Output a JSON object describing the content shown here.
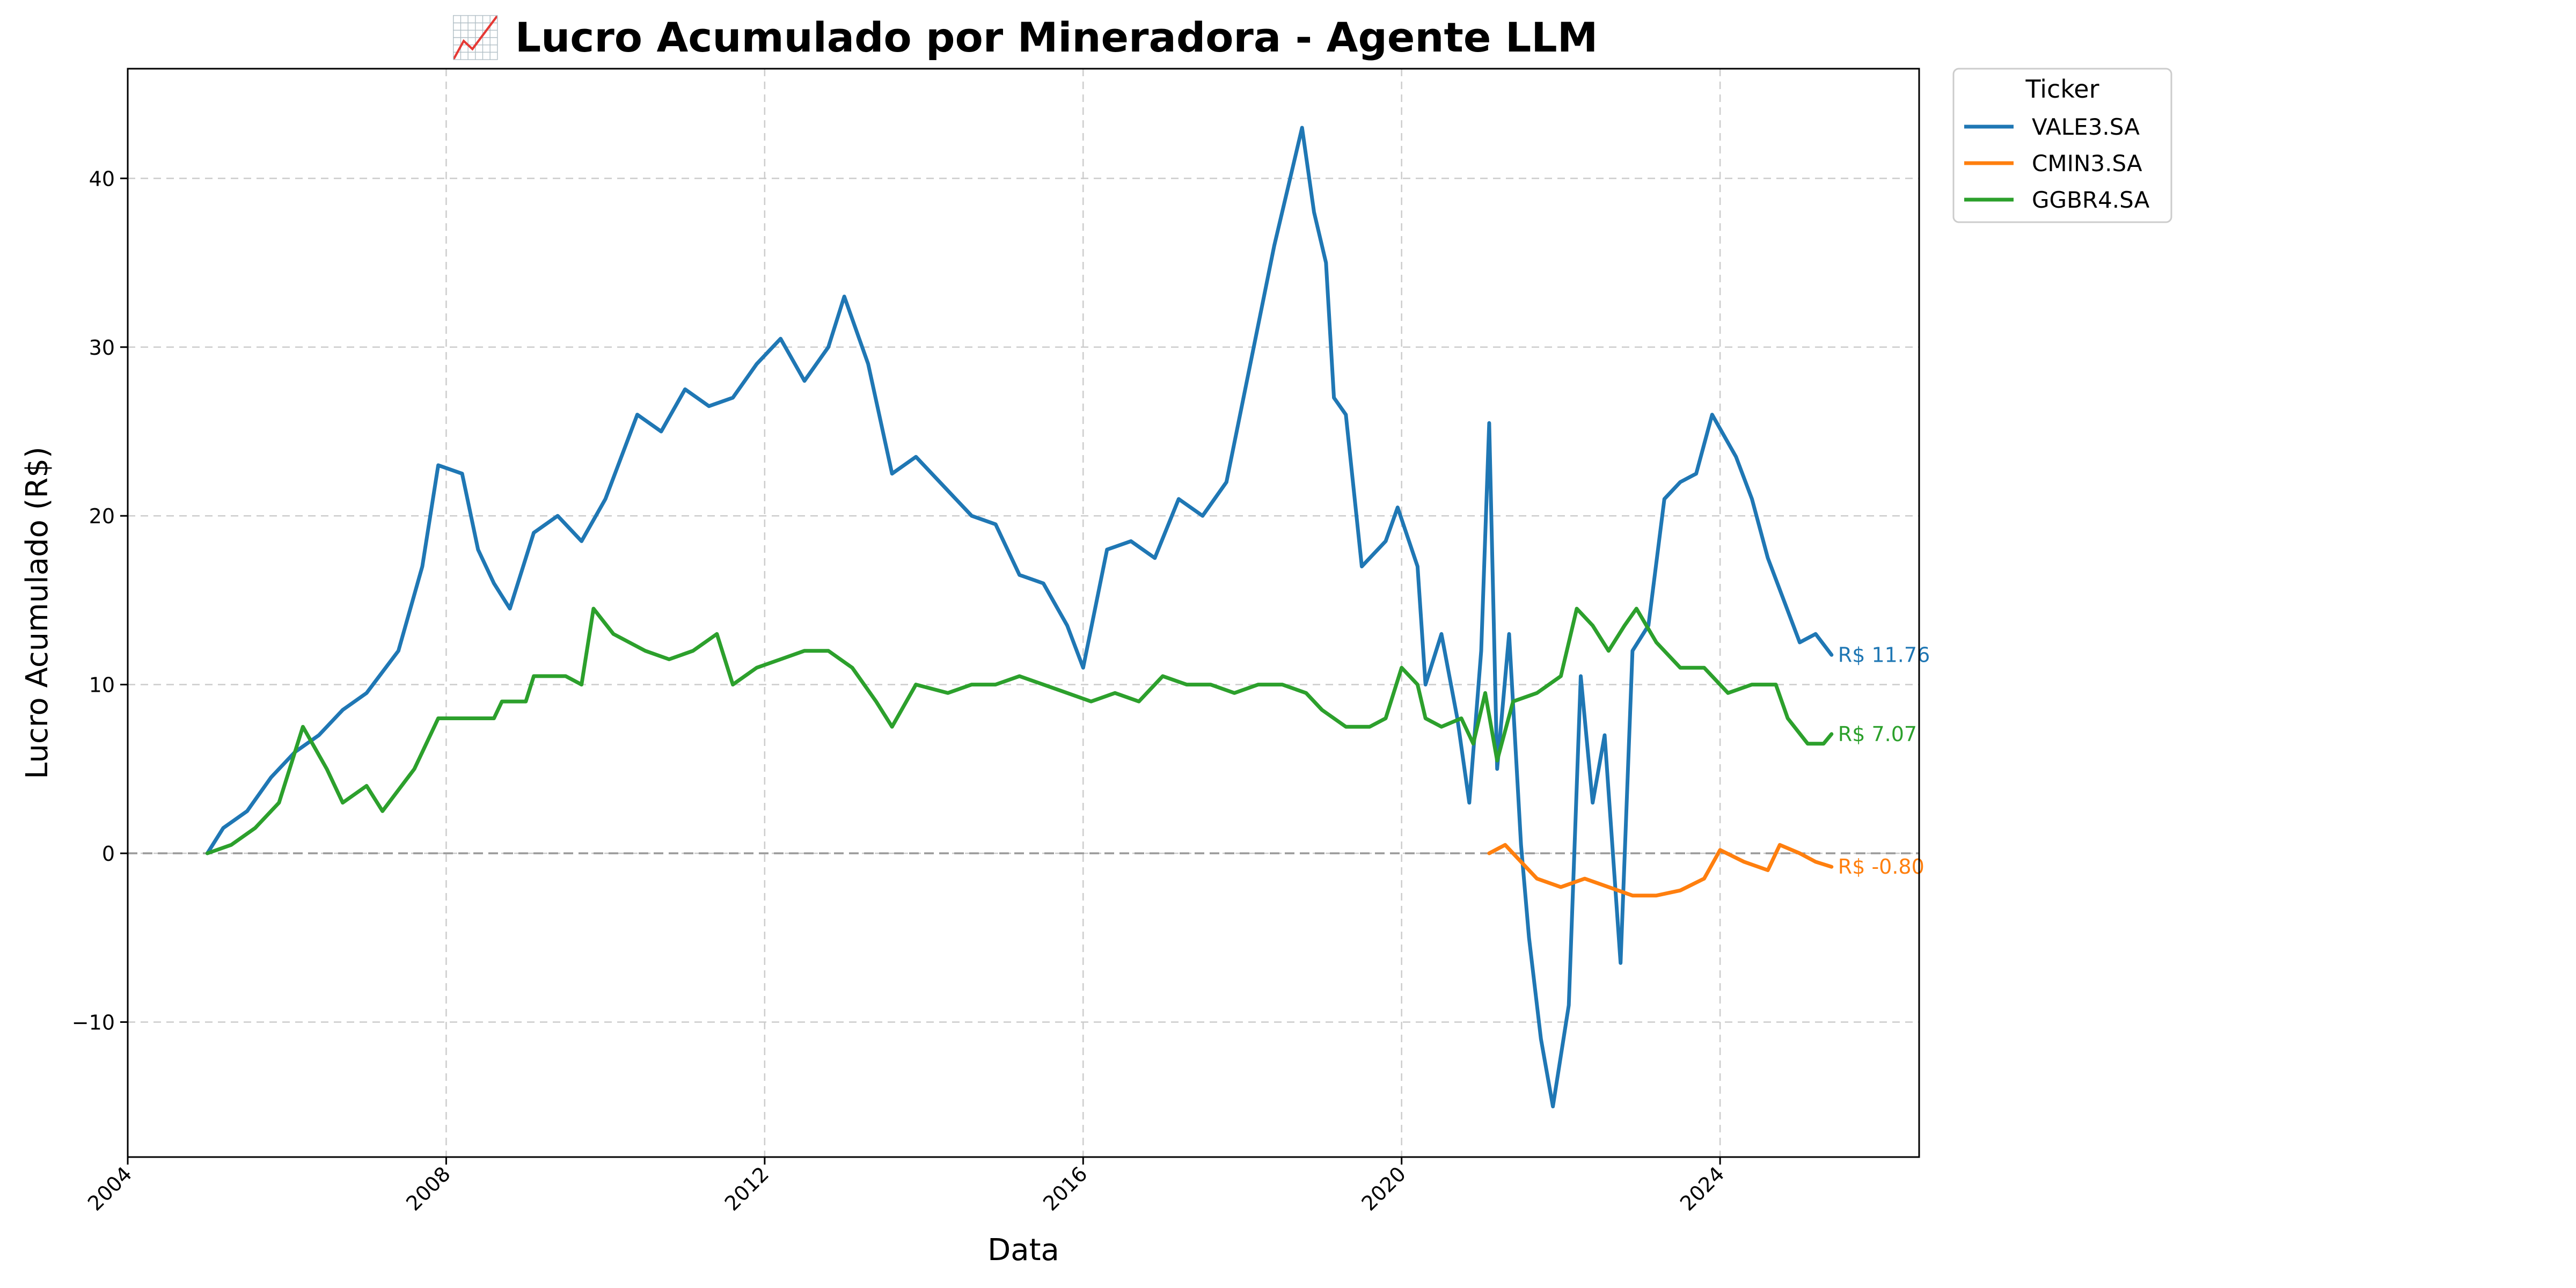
{
  "chart_data": {
    "type": "line",
    "title": "📈 Lucro Acumulado por Mineradora - Agente LLM",
    "xlabel": "Data",
    "ylabel": "Lucro Acumulado (R$)",
    "xlim": [
      2004.0,
      2026.5
    ],
    "ylim": [
      -18.0,
      46.5
    ],
    "x_ticks": [
      2004,
      2008,
      2012,
      2016,
      2020,
      2024
    ],
    "x_tick_labels": [
      "2004",
      "2008",
      "2012",
      "2016",
      "2020",
      "2024"
    ],
    "y_ticks": [
      -10,
      0,
      10,
      20,
      30,
      40
    ],
    "y_tick_labels": [
      "−10",
      "0",
      "10",
      "20",
      "30",
      "40"
    ],
    "grid": true,
    "zero_line": 0,
    "legend": {
      "title": "Ticker",
      "placement": "outside upper right"
    },
    "series": [
      {
        "name": "VALE3.SA",
        "color": "#1f77b4",
        "end_label": "R$ 11.76",
        "points": [
          [
            2005.0,
            0.0
          ],
          [
            2005.2,
            1.5
          ],
          [
            2005.5,
            2.5
          ],
          [
            2005.8,
            4.5
          ],
          [
            2006.1,
            6.0
          ],
          [
            2006.4,
            7.0
          ],
          [
            2006.7,
            8.5
          ],
          [
            2007.0,
            9.5
          ],
          [
            2007.4,
            12.0
          ],
          [
            2007.7,
            17.0
          ],
          [
            2007.9,
            23.0
          ],
          [
            2008.2,
            22.5
          ],
          [
            2008.4,
            18.0
          ],
          [
            2008.6,
            16.0
          ],
          [
            2008.8,
            14.5
          ],
          [
            2009.1,
            19.0
          ],
          [
            2009.4,
            20.0
          ],
          [
            2009.7,
            18.5
          ],
          [
            2010.0,
            21.0
          ],
          [
            2010.4,
            26.0
          ],
          [
            2010.7,
            25.0
          ],
          [
            2011.0,
            27.5
          ],
          [
            2011.3,
            26.5
          ],
          [
            2011.6,
            27.0
          ],
          [
            2011.9,
            29.0
          ],
          [
            2012.2,
            30.5
          ],
          [
            2012.5,
            28.0
          ],
          [
            2012.8,
            30.0
          ],
          [
            2013.0,
            33.0
          ],
          [
            2013.3,
            29.0
          ],
          [
            2013.6,
            22.5
          ],
          [
            2013.9,
            23.5
          ],
          [
            2014.2,
            22.0
          ],
          [
            2014.6,
            20.0
          ],
          [
            2014.9,
            19.5
          ],
          [
            2015.2,
            16.5
          ],
          [
            2015.5,
            16.0
          ],
          [
            2015.8,
            13.5
          ],
          [
            2016.0,
            11.0
          ],
          [
            2016.3,
            18.0
          ],
          [
            2016.6,
            18.5
          ],
          [
            2016.9,
            17.5
          ],
          [
            2017.2,
            21.0
          ],
          [
            2017.5,
            20.0
          ],
          [
            2017.8,
            22.0
          ],
          [
            2018.1,
            29.0
          ],
          [
            2018.4,
            36.0
          ],
          [
            2018.6,
            40.0
          ],
          [
            2018.75,
            43.0
          ],
          [
            2018.9,
            38.0
          ],
          [
            2019.05,
            35.0
          ],
          [
            2019.15,
            27.0
          ],
          [
            2019.3,
            26.0
          ],
          [
            2019.5,
            17.0
          ],
          [
            2019.8,
            18.5
          ],
          [
            2019.95,
            20.5
          ],
          [
            2020.2,
            17.0
          ],
          [
            2020.3,
            10.0
          ],
          [
            2020.5,
            13.0
          ],
          [
            2020.7,
            8.0
          ],
          [
            2020.85,
            3.0
          ],
          [
            2021.0,
            12.0
          ],
          [
            2021.1,
            25.5
          ],
          [
            2021.2,
            5.0
          ],
          [
            2021.35,
            13.0
          ],
          [
            2021.5,
            0.5
          ],
          [
            2021.6,
            -5.0
          ],
          [
            2021.75,
            -11.0
          ],
          [
            2021.9,
            -15.0
          ],
          [
            2022.1,
            -9.0
          ],
          [
            2022.25,
            10.5
          ],
          [
            2022.4,
            3.0
          ],
          [
            2022.55,
            7.0
          ],
          [
            2022.75,
            -6.5
          ],
          [
            2022.9,
            12.0
          ],
          [
            2023.1,
            13.5
          ],
          [
            2023.3,
            21.0
          ],
          [
            2023.5,
            22.0
          ],
          [
            2023.7,
            22.5
          ],
          [
            2023.9,
            26.0
          ],
          [
            2024.2,
            23.5
          ],
          [
            2024.4,
            21.0
          ],
          [
            2024.6,
            17.5
          ],
          [
            2024.8,
            15.0
          ],
          [
            2025.0,
            12.5
          ],
          [
            2025.2,
            13.0
          ],
          [
            2025.4,
            11.76
          ]
        ]
      },
      {
        "name": "CMIN3.SA",
        "color": "#ff7f0e",
        "end_label": "R$ -0.80",
        "points": [
          [
            2021.1,
            0.0
          ],
          [
            2021.3,
            0.5
          ],
          [
            2021.5,
            -0.5
          ],
          [
            2021.7,
            -1.5
          ],
          [
            2022.0,
            -2.0
          ],
          [
            2022.3,
            -1.5
          ],
          [
            2022.6,
            -2.0
          ],
          [
            2022.9,
            -2.5
          ],
          [
            2023.2,
            -2.5
          ],
          [
            2023.5,
            -2.2
          ],
          [
            2023.8,
            -1.5
          ],
          [
            2024.0,
            0.2
          ],
          [
            2024.3,
            -0.5
          ],
          [
            2024.6,
            -1.0
          ],
          [
            2024.75,
            0.5
          ],
          [
            2025.0,
            0.0
          ],
          [
            2025.2,
            -0.5
          ],
          [
            2025.4,
            -0.8
          ]
        ]
      },
      {
        "name": "GGBR4.SA",
        "color": "#2ca02c",
        "end_label": "R$ 7.07",
        "points": [
          [
            2005.0,
            0.0
          ],
          [
            2005.3,
            0.5
          ],
          [
            2005.6,
            1.5
          ],
          [
            2005.9,
            3.0
          ],
          [
            2006.2,
            7.5
          ],
          [
            2006.5,
            5.0
          ],
          [
            2006.7,
            3.0
          ],
          [
            2007.0,
            4.0
          ],
          [
            2007.2,
            2.5
          ],
          [
            2007.6,
            5.0
          ],
          [
            2007.9,
            8.0
          ],
          [
            2008.2,
            8.0
          ],
          [
            2008.6,
            8.0
          ],
          [
            2008.7,
            9.0
          ],
          [
            2009.0,
            9.0
          ],
          [
            2009.1,
            10.5
          ],
          [
            2009.5,
            10.5
          ],
          [
            2009.7,
            10.0
          ],
          [
            2009.85,
            14.5
          ],
          [
            2010.1,
            13.0
          ],
          [
            2010.5,
            12.0
          ],
          [
            2010.8,
            11.5
          ],
          [
            2011.1,
            12.0
          ],
          [
            2011.4,
            13.0
          ],
          [
            2011.6,
            10.0
          ],
          [
            2011.9,
            11.0
          ],
          [
            2012.2,
            11.5
          ],
          [
            2012.5,
            12.0
          ],
          [
            2012.8,
            12.0
          ],
          [
            2013.1,
            11.0
          ],
          [
            2013.4,
            9.0
          ],
          [
            2013.6,
            7.5
          ],
          [
            2013.9,
            10.0
          ],
          [
            2014.3,
            9.5
          ],
          [
            2014.6,
            10.0
          ],
          [
            2014.9,
            10.0
          ],
          [
            2015.2,
            10.5
          ],
          [
            2015.5,
            10.0
          ],
          [
            2015.8,
            9.5
          ],
          [
            2016.1,
            9.0
          ],
          [
            2016.4,
            9.5
          ],
          [
            2016.7,
            9.0
          ],
          [
            2017.0,
            10.5
          ],
          [
            2017.3,
            10.0
          ],
          [
            2017.6,
            10.0
          ],
          [
            2017.9,
            9.5
          ],
          [
            2018.2,
            10.0
          ],
          [
            2018.5,
            10.0
          ],
          [
            2018.8,
            9.5
          ],
          [
            2019.0,
            8.5
          ],
          [
            2019.3,
            7.5
          ],
          [
            2019.6,
            7.5
          ],
          [
            2019.8,
            8.0
          ],
          [
            2020.0,
            11.0
          ],
          [
            2020.2,
            10.0
          ],
          [
            2020.3,
            8.0
          ],
          [
            2020.5,
            7.5
          ],
          [
            2020.75,
            8.0
          ],
          [
            2020.9,
            6.5
          ],
          [
            2021.05,
            9.5
          ],
          [
            2021.2,
            5.5
          ],
          [
            2021.4,
            9.0
          ],
          [
            2021.7,
            9.5
          ],
          [
            2022.0,
            10.5
          ],
          [
            2022.2,
            14.5
          ],
          [
            2022.4,
            13.5
          ],
          [
            2022.6,
            12.0
          ],
          [
            2022.8,
            13.5
          ],
          [
            2022.95,
            14.5
          ],
          [
            2023.2,
            12.5
          ],
          [
            2023.5,
            11.0
          ],
          [
            2023.8,
            11.0
          ],
          [
            2024.1,
            9.5
          ],
          [
            2024.4,
            10.0
          ],
          [
            2024.7,
            10.0
          ],
          [
            2024.85,
            8.0
          ],
          [
            2025.1,
            6.5
          ],
          [
            2025.3,
            6.5
          ],
          [
            2025.4,
            7.07
          ]
        ]
      }
    ]
  }
}
